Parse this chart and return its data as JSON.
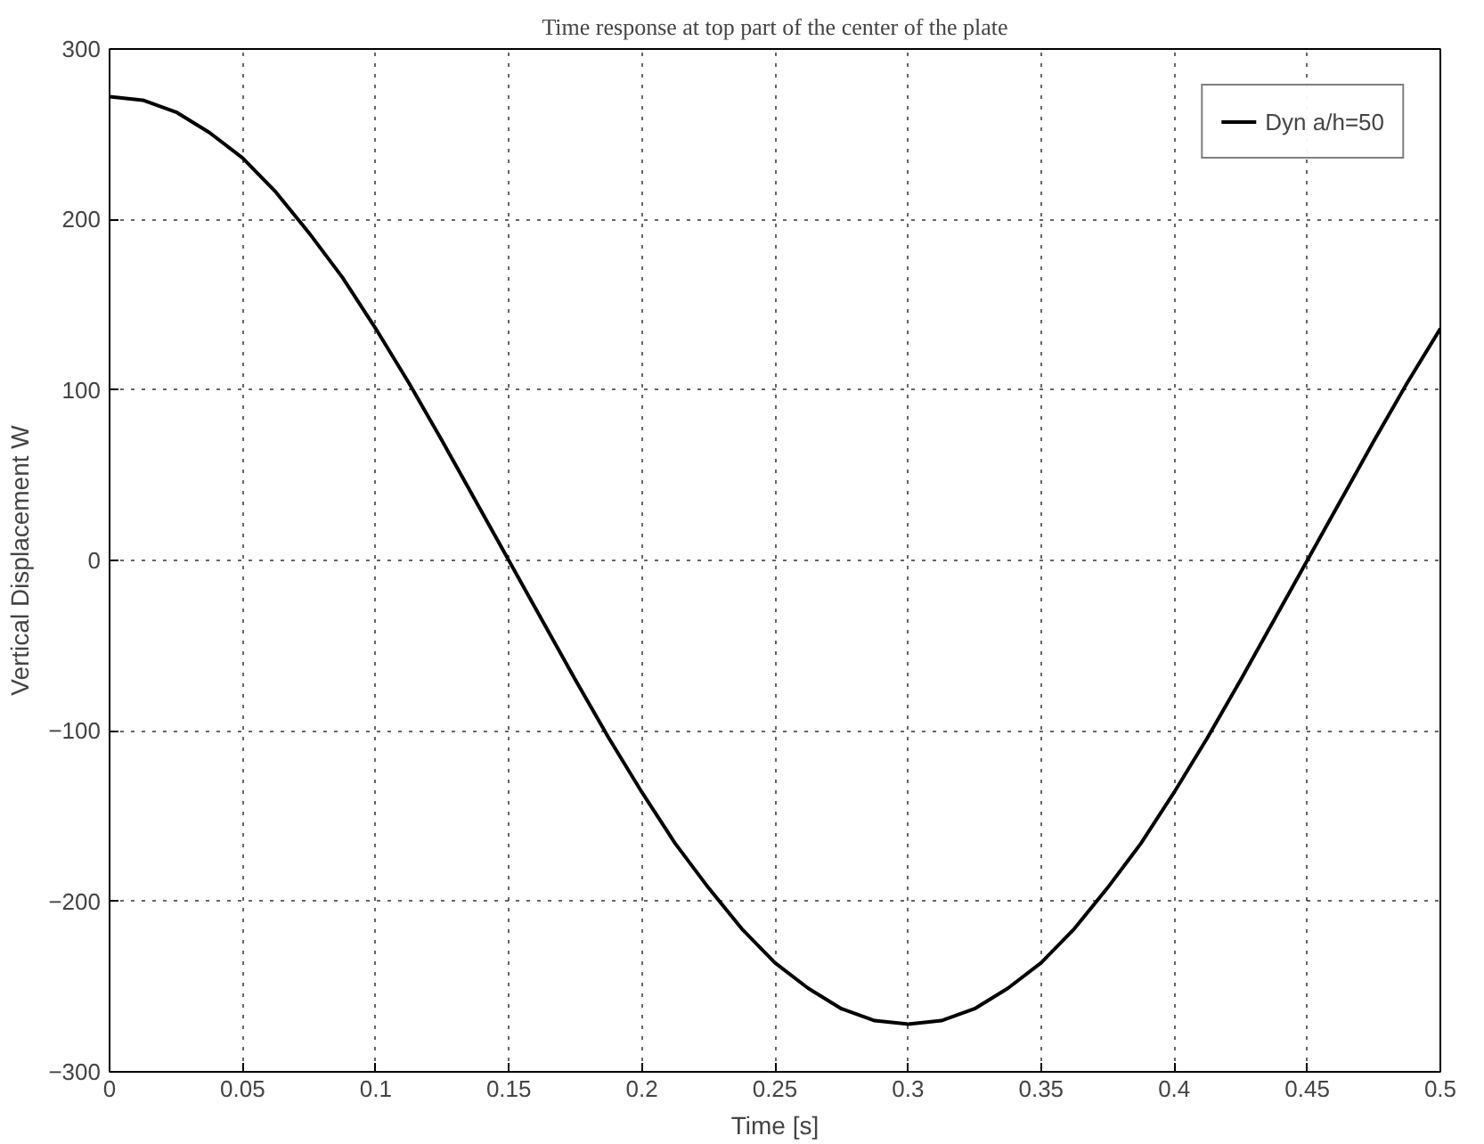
{
  "chart_data": {
    "type": "line",
    "title": "Time response at top part of the center of the plate",
    "xlabel": "Time [s]",
    "ylabel": "Vertical Displacement W",
    "x": [
      0,
      0.0125,
      0.025,
      0.0375,
      0.05,
      0.0625,
      0.075,
      0.0875,
      0.1,
      0.1125,
      0.125,
      0.1375,
      0.15,
      0.1625,
      0.175,
      0.1875,
      0.2,
      0.2125,
      0.225,
      0.2375,
      0.25,
      0.2625,
      0.275,
      0.2875,
      0.3,
      0.3125,
      0.325,
      0.3375,
      0.35,
      0.3625,
      0.375,
      0.3875,
      0.4,
      0.4125,
      0.425,
      0.4375,
      0.45,
      0.4625,
      0.475,
      0.4875,
      0.5
    ],
    "series": [
      {
        "name": "Dyn a/h=50",
        "color": "#000000",
        "values": [
          272,
          270,
          263,
          251,
          236,
          216,
          192,
          166,
          136,
          104,
          70,
          35,
          0,
          -35,
          -70,
          -104,
          -136,
          -166,
          -192,
          -216,
          -236,
          -251,
          -263,
          -270,
          -272,
          -270,
          -263,
          -251,
          -236,
          -216,
          -192,
          -166,
          -136,
          -104,
          -70,
          -35,
          0,
          35,
          70,
          104,
          136
        ]
      }
    ],
    "xlim": [
      0,
      0.5
    ],
    "xticks": [
      0,
      0.05,
      0.1,
      0.15,
      0.2,
      0.25,
      0.3,
      0.35,
      0.4,
      0.45,
      0.5
    ],
    "ylim": [
      -300,
      300
    ],
    "yticks": [
      -300,
      -200,
      -100,
      0,
      100,
      200,
      300
    ],
    "grid": true,
    "legend": "top right",
    "line_style": "solid",
    "marker": "none"
  }
}
